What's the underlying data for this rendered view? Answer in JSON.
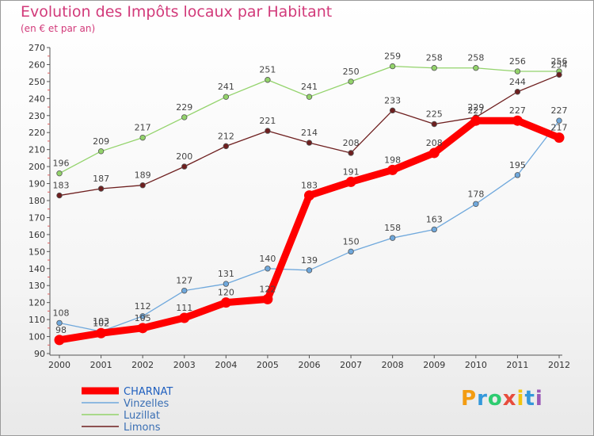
{
  "title": "Evolution des Impôts locaux par Habitant",
  "subtitle": "(en € et par an)",
  "logo": {
    "text": "Proxiti",
    "colors": [
      "#f39c12",
      "#3498db",
      "#2ecc71",
      "#e74c3c",
      "#f1c40f",
      "#3498db",
      "#9b59b6"
    ]
  },
  "chart_data": {
    "type": "line",
    "x": [
      "2000",
      "2001",
      "2002",
      "2003",
      "2004",
      "2005",
      "2006",
      "2007",
      "2008",
      "2009",
      "2010",
      "2011",
      "2012"
    ],
    "ylim": [
      90,
      270
    ],
    "yticks": [
      90,
      100,
      110,
      120,
      130,
      140,
      150,
      160,
      170,
      180,
      190,
      200,
      210,
      220,
      230,
      240,
      250,
      260,
      270
    ],
    "grid": false,
    "legend_position": "bottom-left",
    "series": [
      {
        "name": "CHARNAT",
        "color": "#ff0000",
        "values": [
          98,
          102,
          105,
          111,
          120,
          122,
          183,
          191,
          198,
          208,
          227,
          227,
          217
        ]
      },
      {
        "name": "Vinzelles",
        "color": "#6fa8dc",
        "values": [
          108,
          103,
          112,
          127,
          131,
          140,
          139,
          150,
          158,
          163,
          178,
          195,
          227
        ]
      },
      {
        "name": "Luzillat",
        "color": "#93d36b",
        "values": [
          196,
          209,
          217,
          229,
          241,
          251,
          241,
          250,
          259,
          258,
          258,
          256,
          256
        ]
      },
      {
        "name": "Limons",
        "color": "#6e1f1f",
        "values": [
          183,
          187,
          189,
          200,
          212,
          221,
          214,
          208,
          233,
          225,
          229,
          244,
          254
        ]
      }
    ]
  }
}
